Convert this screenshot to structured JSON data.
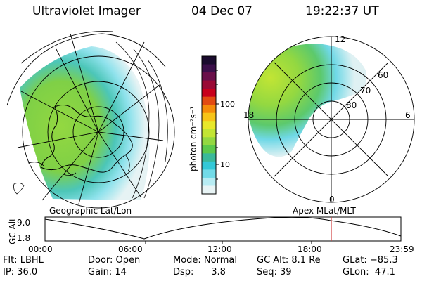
{
  "header": {
    "title": "Ultraviolet Imager",
    "date": "04 Dec 07",
    "time": "19:22:37 UT"
  },
  "colorbar": {
    "unit_label": "photon cm⁻²s⁻¹",
    "ticks": [
      "100",
      "10"
    ],
    "colors": [
      "#1a0b2e",
      "#3b0f4a",
      "#6a0f4a",
      "#9a0a35",
      "#c8001c",
      "#e24b12",
      "#f58c0a",
      "#f7c418",
      "#e8e82a",
      "#c2e534",
      "#93d841",
      "#5cc94c",
      "#3ab99a",
      "#33c8d7",
      "#72dbe8",
      "#b7ecf3",
      "#e8f4f5"
    ]
  },
  "left_map": {
    "caption": "Geographic Lat/Lon"
  },
  "right_map": {
    "caption": "Apex MLat/MLT",
    "clock_labels": {
      "top": "12",
      "left": "18",
      "right": "6",
      "bottom": "0"
    },
    "ring_labels": [
      "60",
      "70",
      "80"
    ]
  },
  "timeline": {
    "ylabel": "GC Alt",
    "y_ticks": [
      "9.0",
      "1.8"
    ],
    "x_ticks": [
      "00:00",
      "06:00",
      "12:00",
      "18:00",
      "23:59"
    ],
    "marker_color": "#d04040"
  },
  "footer": {
    "filter": "Flt: LBHL",
    "ip": "IP: 36.0",
    "door": "Door: Open",
    "gain": "Gain: 14",
    "mode": "Mode: Normal",
    "dsp": "Dsp:      3.8",
    "gc_alt": "GC Alt: 8.1 Re",
    "seq": "Seq: 39",
    "glat": "GLat: −85.3",
    "glon": "GLon:  47.1"
  }
}
